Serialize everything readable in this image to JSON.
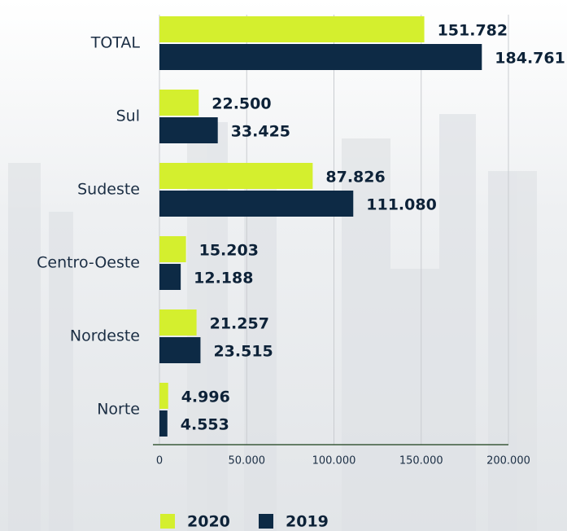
{
  "chart_data": {
    "type": "barh",
    "categories": [
      "TOTAL",
      "Sul",
      "Sudeste",
      "Centro-Oeste",
      "Nordeste",
      "Norte"
    ],
    "series": [
      {
        "name": "2020",
        "color": "#d4ef2e",
        "values": [
          151782,
          22500,
          87826,
          15203,
          21257,
          4996
        ],
        "value_labels": [
          "151.782",
          "22.500",
          "87.826",
          "15.203",
          "21.257",
          "4.996"
        ]
      },
      {
        "name": "2019",
        "color": "#0d2a45",
        "values": [
          184761,
          33425,
          111080,
          12188,
          23515,
          4553
        ],
        "value_labels": [
          "184.761",
          "33.425",
          "111.080",
          "12.188",
          "23.515",
          "4.553"
        ]
      }
    ],
    "xlim": [
      0,
      200000
    ],
    "xticks": [
      0,
      {
        "value": 50000,
        "label": "50.000"
      },
      {
        "value": 100000,
        "label": "100.000"
      },
      {
        "value": 150000,
        "label": "150.000"
      },
      {
        "value": 200000,
        "label": "200.000"
      }
    ],
    "grid": true
  }
}
